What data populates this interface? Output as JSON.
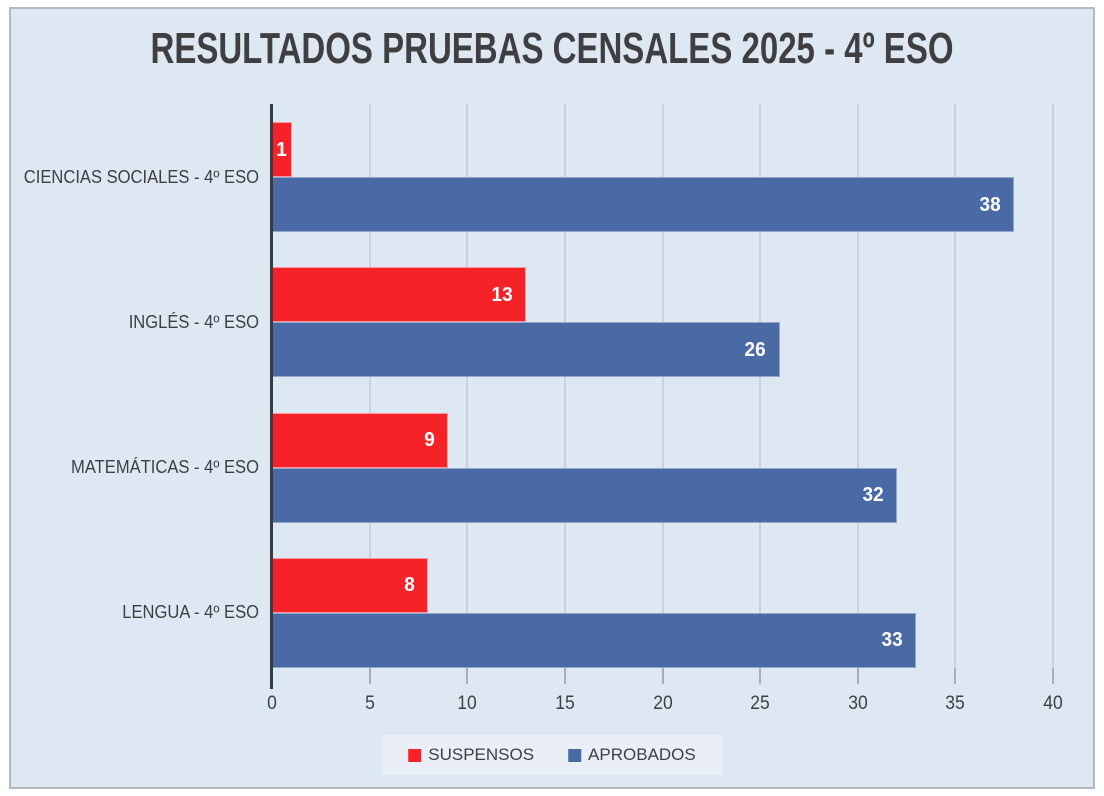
{
  "chart_data": {
    "type": "bar",
    "orientation": "horizontal",
    "title": "RESULTADOS PRUEBAS CENSALES 2025 - 4º ESO",
    "categories": [
      "CIENCIAS SOCIALES - 4º ESO",
      "INGLÉS - 4º ESO",
      "MATEMÁTICAS - 4º ESO",
      "LENGUA - 4º ESO"
    ],
    "series": [
      {
        "name": "SUSPENSOS",
        "color": "#f52328",
        "border_color": "#f9989b",
        "values": [
          1,
          13,
          9,
          8
        ]
      },
      {
        "name": "APROBADOS",
        "color": "#4a6aa6",
        "border_color": "#93a7cd",
        "values": [
          38,
          26,
          32,
          33
        ]
      }
    ],
    "xlabel": "",
    "ylabel": "",
    "xlim": [
      0,
      40
    ],
    "x_ticks": [
      0,
      5,
      10,
      15,
      20,
      25,
      30,
      35,
      40
    ],
    "grid": true,
    "data_labels": true,
    "data_label_color": "#ffffff",
    "legend_position": "bottom"
  },
  "colors": {
    "page_background": "#ffffff",
    "background": "#dde8f3",
    "frame_border": "#b3b9c1",
    "gridline": "#c9d2d9",
    "axis_line": "#3b3b3d",
    "tick": "#a6afb9",
    "text": "#3f3f41",
    "legend_background": "#e9eef7"
  }
}
